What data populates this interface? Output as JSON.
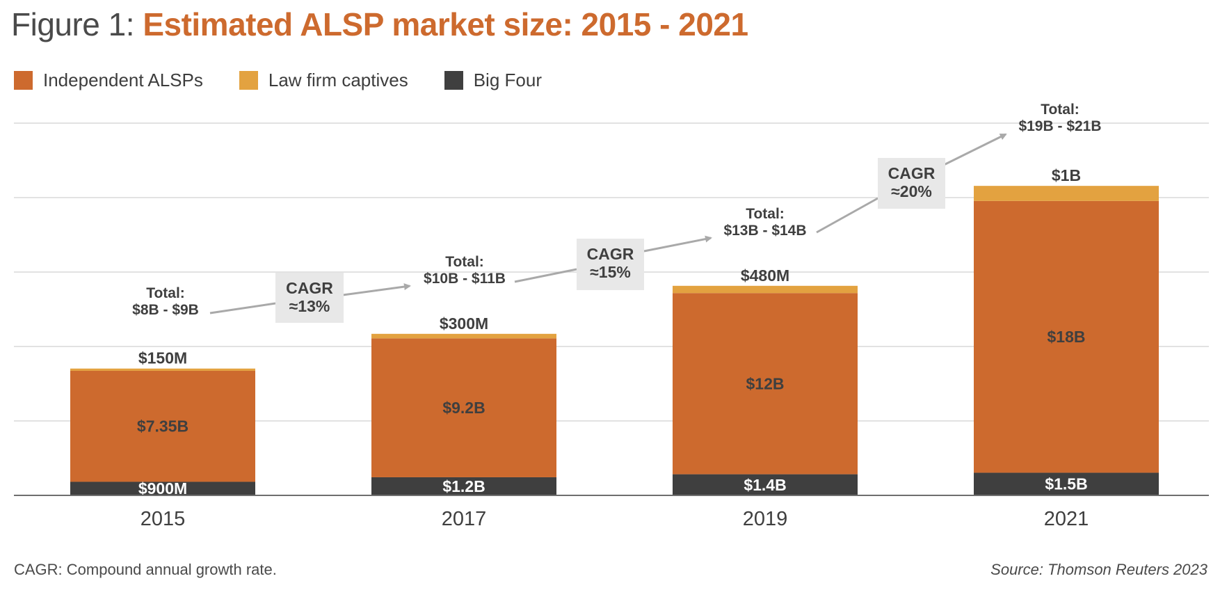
{
  "title": {
    "prefix": "Figure 1:",
    "main": "Estimated ALSP market size: 2015 - 2021"
  },
  "colors": {
    "independent": "#cd6a2e",
    "captives": "#e3a240",
    "bigfour": "#3f3f3f",
    "accent": "#cd6a2e"
  },
  "chart_data": {
    "type": "bar",
    "stacked": true,
    "title": "Estimated ALSP market size: 2015 - 2021",
    "xlabel": "",
    "ylabel": "",
    "ylim": [
      0,
      25
    ],
    "units": "$B",
    "categories": [
      "2015",
      "2017",
      "2019",
      "2021"
    ],
    "series": [
      {
        "key": "bigfour",
        "name": "Big Four",
        "values": [
          0.9,
          1.2,
          1.4,
          1.5
        ],
        "labels": [
          "$900M",
          "$1.2B",
          "$1.4B",
          "$1.5B"
        ]
      },
      {
        "key": "independent",
        "name": "Independent ALSPs",
        "values": [
          7.35,
          9.2,
          12,
          18
        ],
        "labels": [
          "$7.35B",
          "$9.2B",
          "$12B",
          "$18B"
        ]
      },
      {
        "key": "captives",
        "name": "Law firm captives",
        "values": [
          0.15,
          0.3,
          0.48,
          1
        ],
        "labels": [
          "$150M",
          "$300M",
          "$480M",
          "$1B"
        ]
      }
    ],
    "legend": [
      {
        "key": "independent",
        "name": "Independent ALSPs"
      },
      {
        "key": "captives",
        "name": "Law firm captives"
      },
      {
        "key": "bigfour",
        "name": "Big Four"
      }
    ],
    "totals": [
      {
        "heading": "Total:",
        "range": "$8B - $9B"
      },
      {
        "heading": "Total:",
        "range": "$10B - $11B"
      },
      {
        "heading": "Total:",
        "range": "$13B - $14B"
      },
      {
        "heading": "Total:",
        "range": "$19B - $21B"
      }
    ],
    "cagr": [
      {
        "label": "CAGR",
        "value": "≈13%"
      },
      {
        "label": "CAGR",
        "value": "≈15%"
      },
      {
        "label": "CAGR",
        "value": "≈20%"
      }
    ],
    "gridlines": true,
    "legend_position": "top-left"
  },
  "footnote": "CAGR: Compound annual growth rate.",
  "source": "Source: Thomson Reuters 2023"
}
